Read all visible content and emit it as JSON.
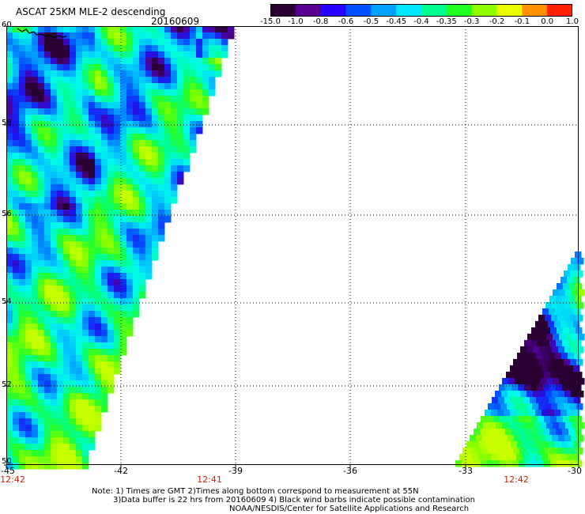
{
  "header": {
    "title": "ASCAT 25KM MLE-2 descending",
    "date": "20160609"
  },
  "colorbar": {
    "labels": [
      "-15.0",
      "-1.0",
      "-0.8",
      "-0.6",
      "-0.5",
      "-0.45",
      "-0.4",
      "-0.35",
      "-0.3",
      "-0.2",
      "-0.1",
      "0.0",
      "1.0"
    ],
    "colors": [
      "#2a0030",
      "#5a0090",
      "#2800ff",
      "#0050ff",
      "#00a0ff",
      "#00e8ff",
      "#00ff90",
      "#20ff20",
      "#90ff00",
      "#e8ff00",
      "#ff9000",
      "#ff2000"
    ]
  },
  "map": {
    "lat_labels": [
      "60",
      "58",
      "56",
      "54",
      "52",
      "50"
    ],
    "lon_labels": [
      "-45",
      "-42",
      "-39",
      "-36",
      "-33",
      "-30"
    ],
    "time_labels": [
      "12:42",
      "12:41",
      "12:42"
    ]
  },
  "notes": {
    "line1": "Note: 1) Times are GMT 2)Times along bottom correspond to measurement at 55N",
    "line2": "3)Data buffer is 22 hrs from 20160609 4) Black wind barbs indicate possible contamination",
    "line3": "NOAA/NESDIS/Center for Satellite Applications and Research"
  }
}
